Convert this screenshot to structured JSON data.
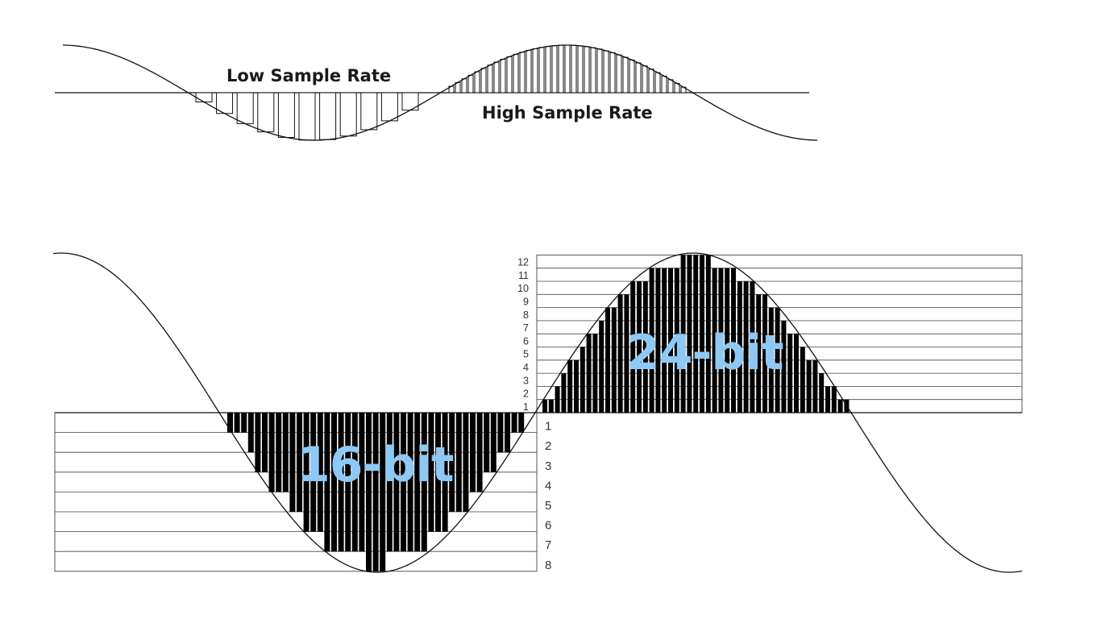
{
  "sample_rate": {
    "low_label": "Low Sample Rate",
    "high_label": "High Sample Rate"
  },
  "bit_depth": {
    "label_16": "16-bit",
    "label_24": "24-bit",
    "levels_16": [
      "1",
      "2",
      "3",
      "4",
      "5",
      "6",
      "7",
      "8"
    ],
    "levels_24": [
      "1",
      "2",
      "3",
      "4",
      "5",
      "6",
      "7",
      "8",
      "9",
      "10",
      "11",
      "12"
    ]
  },
  "colors": {
    "bit_label": "#8ec8f5",
    "ink": "#111111"
  }
}
